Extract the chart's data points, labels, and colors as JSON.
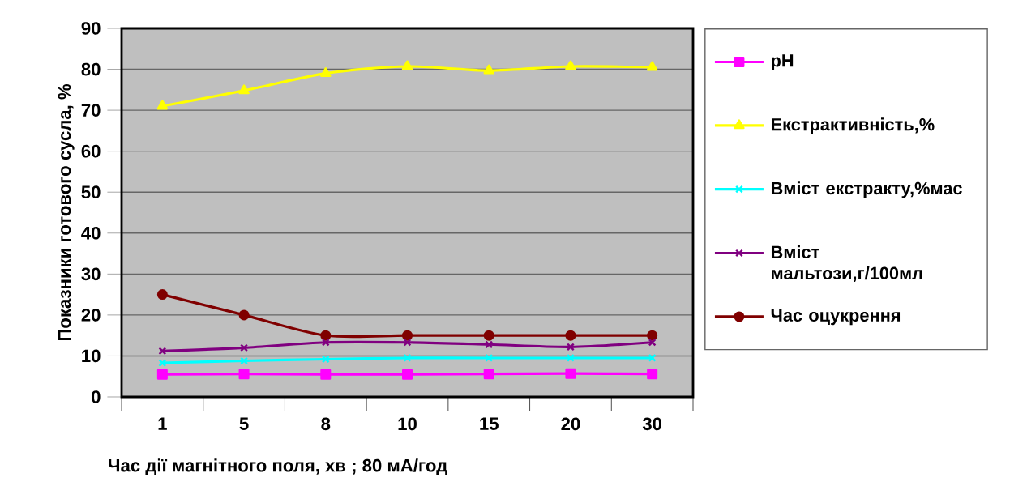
{
  "chart_data": {
    "type": "line",
    "xlabel": "Час дії магнітного поля, хв ; 80 мА/год",
    "ylabel": "Показники готового сусла, %",
    "categories": [
      "1",
      "5",
      "8",
      "10",
      "15",
      "20",
      "30"
    ],
    "series": [
      {
        "name": "pH",
        "color": "#ff00ff",
        "marker": "square",
        "values": [
          5.5,
          5.6,
          5.5,
          5.5,
          5.6,
          5.7,
          5.6
        ]
      },
      {
        "name": "Екстрактивність,%",
        "color": "#ffff00",
        "marker": "triangle",
        "values": [
          71,
          74.8,
          79,
          80.7,
          79.7,
          80.7,
          80.5
        ]
      },
      {
        "name": "Вміст екстракту,%мас",
        "color": "#00ffff",
        "marker": "cross",
        "values": [
          8.3,
          8.8,
          9.2,
          9.5,
          9.5,
          9.5,
          9.5
        ]
      },
      {
        "name": "Вміст мальтози,г/100мл",
        "color": "#800080",
        "marker": "cross",
        "values": [
          11.2,
          12,
          13.3,
          13.3,
          12.8,
          12.2,
          13.3
        ]
      },
      {
        "name": "Час оцукрення",
        "color": "#800000",
        "marker": "circle",
        "values": [
          25,
          20,
          15,
          15,
          15,
          15,
          15
        ]
      }
    ],
    "ylim": [
      0,
      90
    ],
    "yticks": [
      0,
      10,
      20,
      30,
      40,
      50,
      60,
      70,
      80,
      90
    ],
    "grid": "y",
    "legend": "right"
  }
}
